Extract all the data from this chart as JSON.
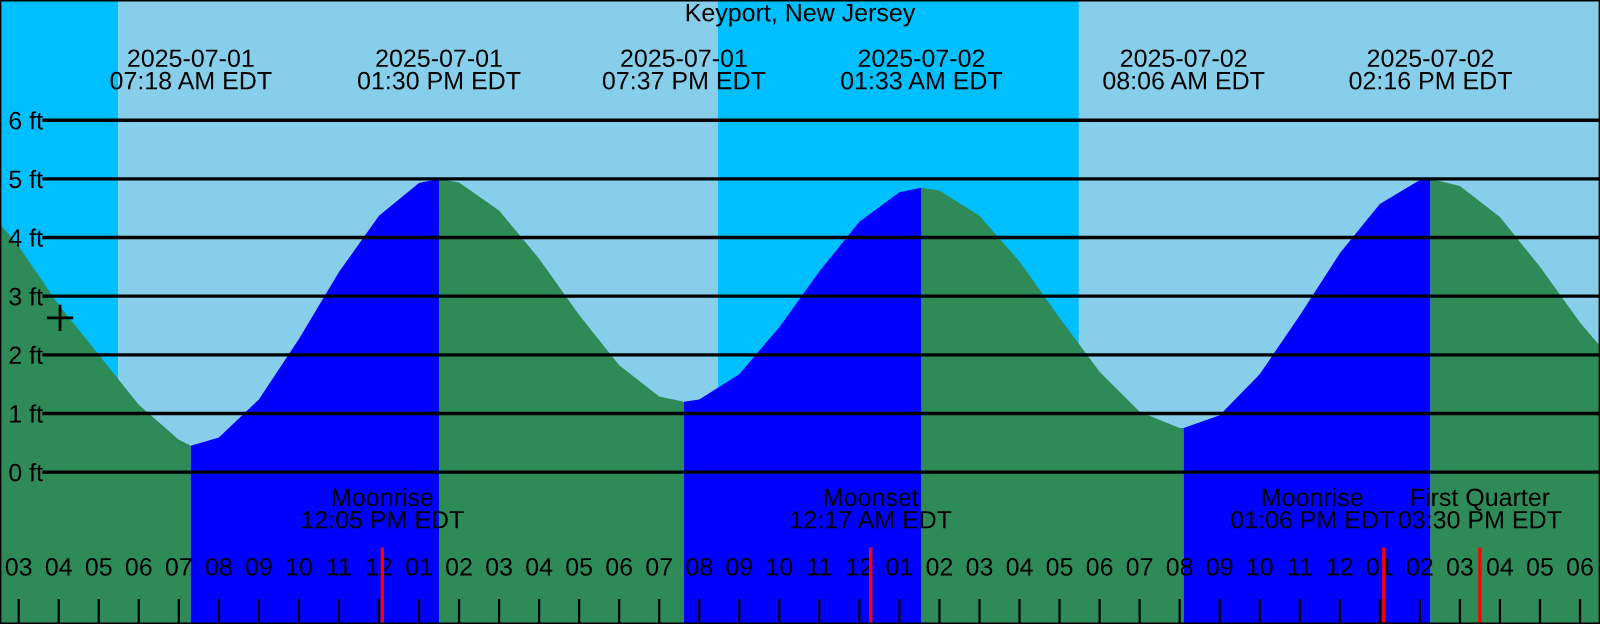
{
  "chart_data": {
    "type": "area",
    "title": "Keyport, New Jersey",
    "xlim": [
      "2025-07-01T02:32",
      "2025-07-02T18:30"
    ],
    "ylim": [
      -2.59,
      8.05
    ],
    "xticks": [
      {
        "value": "2025-07-01T03:00",
        "label": "03"
      },
      {
        "value": "2025-07-01T04:00",
        "label": "04"
      },
      {
        "value": "2025-07-01T05:00",
        "label": "05"
      },
      {
        "value": "2025-07-01T06:00",
        "label": "06"
      },
      {
        "value": "2025-07-01T07:00",
        "label": "07"
      },
      {
        "value": "2025-07-01T08:00",
        "label": "08"
      },
      {
        "value": "2025-07-01T09:00",
        "label": "09"
      },
      {
        "value": "2025-07-01T10:00",
        "label": "10"
      },
      {
        "value": "2025-07-01T11:00",
        "label": "11"
      },
      {
        "value": "2025-07-01T12:00",
        "label": "12"
      },
      {
        "value": "2025-07-01T13:00",
        "label": "01"
      },
      {
        "value": "2025-07-01T14:00",
        "label": "02"
      },
      {
        "value": "2025-07-01T15:00",
        "label": "03"
      },
      {
        "value": "2025-07-01T16:00",
        "label": "04"
      },
      {
        "value": "2025-07-01T17:00",
        "label": "05"
      },
      {
        "value": "2025-07-01T18:00",
        "label": "06"
      },
      {
        "value": "2025-07-01T19:00",
        "label": "07"
      },
      {
        "value": "2025-07-01T20:00",
        "label": "08"
      },
      {
        "value": "2025-07-01T21:00",
        "label": "09"
      },
      {
        "value": "2025-07-01T22:00",
        "label": "10"
      },
      {
        "value": "2025-07-01T23:00",
        "label": "11"
      },
      {
        "value": "2025-07-02T00:00",
        "label": "12"
      },
      {
        "value": "2025-07-02T01:00",
        "label": "01"
      },
      {
        "value": "2025-07-02T02:00",
        "label": "02"
      },
      {
        "value": "2025-07-02T03:00",
        "label": "03"
      },
      {
        "value": "2025-07-02T04:00",
        "label": "04"
      },
      {
        "value": "2025-07-02T05:00",
        "label": "05"
      },
      {
        "value": "2025-07-02T06:00",
        "label": "06"
      },
      {
        "value": "2025-07-02T07:00",
        "label": "07"
      },
      {
        "value": "2025-07-02T08:00",
        "label": "08"
      },
      {
        "value": "2025-07-02T09:00",
        "label": "09"
      },
      {
        "value": "2025-07-02T10:00",
        "label": "10"
      },
      {
        "value": "2025-07-02T11:00",
        "label": "11"
      },
      {
        "value": "2025-07-02T12:00",
        "label": "12"
      },
      {
        "value": "2025-07-02T13:00",
        "label": "01"
      },
      {
        "value": "2025-07-02T14:00",
        "label": "02"
      },
      {
        "value": "2025-07-02T15:00",
        "label": "03"
      },
      {
        "value": "2025-07-02T16:00",
        "label": "04"
      },
      {
        "value": "2025-07-02T17:00",
        "label": "05"
      },
      {
        "value": "2025-07-02T18:00",
        "label": "06"
      }
    ],
    "yticks": [
      {
        "value": 0,
        "label": "0 ft"
      },
      {
        "value": 1,
        "label": "1 ft"
      },
      {
        "value": 2,
        "label": "2 ft"
      },
      {
        "value": 3,
        "label": "3 ft"
      },
      {
        "value": 4,
        "label": "4 ft"
      },
      {
        "value": 5,
        "label": "5 ft"
      },
      {
        "value": 6,
        "label": "6 ft"
      }
    ],
    "grid": "y",
    "bands": [
      {
        "axis": "x",
        "from": "2025-07-01T02:32",
        "to": "2025-07-01T05:29",
        "color": "#00bfff"
      },
      {
        "axis": "x",
        "from": "2025-07-01T05:29",
        "to": "2025-07-01T20:28",
        "color": "#87ceeb"
      },
      {
        "axis": "x",
        "from": "2025-07-01T20:28",
        "to": "2025-07-02T05:29",
        "color": "#00bfff"
      },
      {
        "axis": "x",
        "from": "2025-07-02T05:29",
        "to": "2025-07-02T18:30",
        "color": "#87ceeb"
      },
      {
        "axis": "x",
        "from": "2025-07-01T02:32",
        "to": "2025-07-01T07:18",
        "color": "#2e8b57"
      },
      {
        "axis": "x",
        "from": "2025-07-01T07:18",
        "to": "2025-07-01T13:30",
        "color": "#0000ff"
      },
      {
        "axis": "x",
        "from": "2025-07-01T13:30",
        "to": "2025-07-01T19:37",
        "color": "#2e8b57"
      },
      {
        "axis": "x",
        "from": "2025-07-01T19:37",
        "to": "2025-07-02T01:33",
        "color": "#0000ff"
      },
      {
        "axis": "x",
        "from": "2025-07-02T01:33",
        "to": "2025-07-02T08:06",
        "color": "#2e8b57"
      },
      {
        "axis": "x",
        "from": "2025-07-02T08:06",
        "to": "2025-07-02T14:16",
        "color": "#0000ff"
      },
      {
        "axis": "x",
        "from": "2025-07-02T14:16",
        "to": "2025-07-02T18:30",
        "color": "#2e8b57"
      }
    ],
    "ref_lines": [
      {
        "axis": "x",
        "value": "2025-07-01T12:05",
        "label": "Moonrise\n12:05 PM EDT",
        "color": "#ff0000"
      },
      {
        "axis": "x",
        "value": "2025-07-02T00:17",
        "label": "Moonset\n12:17 AM EDT",
        "color": "#ff0000"
      },
      {
        "axis": "x",
        "value": "2025-07-02T13:06",
        "label": "Moonrise\n01:06 PM EDT",
        "color": "#ff0000"
      },
      {
        "axis": "x",
        "value": "2025-07-02T15:30",
        "label": "First Quarter\n03:30 PM EDT",
        "color": "#ff0000"
      }
    ],
    "series": [
      {
        "color": "#2e8b57",
        "x": [
          "2025-07-01T02:32",
          "2025-07-01T03:00",
          "2025-07-01T04:00",
          "2025-07-01T05:00",
          "2025-07-01T06:00",
          "2025-07-01T07:00",
          "2025-07-01T07:18"
        ],
        "values": [
          4.23,
          3.85,
          2.85,
          2.0,
          1.15,
          0.55,
          0.45
        ]
      },
      {
        "color": "#0000ff",
        "x": [
          "2025-07-01T07:18",
          "2025-07-01T08:00",
          "2025-07-01T09:00",
          "2025-07-01T10:00",
          "2025-07-01T11:00",
          "2025-07-01T12:00",
          "2025-07-01T13:00",
          "2025-07-01T13:30"
        ],
        "values": [
          0.45,
          0.59,
          1.24,
          2.27,
          3.41,
          4.37,
          4.93,
          5.0
        ]
      },
      {
        "color": "#2e8b57",
        "x": [
          "2025-07-01T13:30",
          "2025-07-01T14:00",
          "2025-07-01T15:00",
          "2025-07-01T16:00",
          "2025-07-01T17:00",
          "2025-07-01T18:00",
          "2025-07-01T19:00",
          "2025-07-01T19:37"
        ],
        "values": [
          5.0,
          4.94,
          4.46,
          3.64,
          2.68,
          1.82,
          1.29,
          1.2
        ]
      },
      {
        "color": "#0000ff",
        "x": [
          "2025-07-01T19:37",
          "2025-07-01T20:00",
          "2025-07-01T21:00",
          "2025-07-01T22:00",
          "2025-07-01T23:00",
          "2025-07-02T00:00",
          "2025-07-02T01:00",
          "2025-07-02T01:33"
        ],
        "values": [
          1.2,
          1.24,
          1.67,
          2.47,
          3.42,
          4.27,
          4.77,
          4.85
        ]
      },
      {
        "color": "#2e8b57",
        "x": [
          "2025-07-02T01:33",
          "2025-07-02T02:00",
          "2025-07-02T03:00",
          "2025-07-02T04:00",
          "2025-07-02T05:00",
          "2025-07-02T06:00",
          "2025-07-02T07:00",
          "2025-07-02T08:00",
          "2025-07-02T08:06"
        ],
        "values": [
          4.85,
          4.8,
          4.37,
          3.59,
          2.63,
          1.71,
          1.03,
          0.75,
          0.75
        ]
      },
      {
        "color": "#0000ff",
        "x": [
          "2025-07-02T08:06",
          "2025-07-02T09:00",
          "2025-07-02T10:00",
          "2025-07-02T11:00",
          "2025-07-02T12:00",
          "2025-07-02T13:00",
          "2025-07-02T14:00",
          "2025-07-02T14:16"
        ],
        "values": [
          0.75,
          0.97,
          1.67,
          2.67,
          3.73,
          4.57,
          4.98,
          5.0
        ]
      },
      {
        "color": "#2e8b57",
        "x": [
          "2025-07-02T14:16",
          "2025-07-02T15:00",
          "2025-07-02T16:00",
          "2025-07-02T17:00",
          "2025-07-02T18:00",
          "2025-07-02T18:30"
        ],
        "values": [
          5.0,
          4.88,
          4.35,
          3.5,
          2.55,
          2.15
        ]
      },
      {
        "type": "scatter",
        "color": "#000000",
        "marker": "cross",
        "x": [
          "2025-07-01T04:02"
        ],
        "values": [
          2.63
        ]
      }
    ],
    "x2lim": [
      "2025-07-01T02:32",
      "2025-07-02T18:30"
    ],
    "x2ticks": [
      {
        "value": "2025-07-01T07:18",
        "label": "2025-07-01\n07:18 AM EDT"
      },
      {
        "value": "2025-07-01T13:30",
        "label": "2025-07-01\n01:30 PM EDT"
      },
      {
        "value": "2025-07-01T19:37",
        "label": "2025-07-01\n07:37 PM EDT"
      },
      {
        "value": "2025-07-02T01:33",
        "label": "2025-07-02\n01:33 AM EDT"
      },
      {
        "value": "2025-07-02T08:06",
        "label": "2025-07-02\n08:06 AM EDT"
      },
      {
        "value": "2025-07-02T14:16",
        "label": "2025-07-02\n02:16 PM EDT"
      }
    ]
  }
}
